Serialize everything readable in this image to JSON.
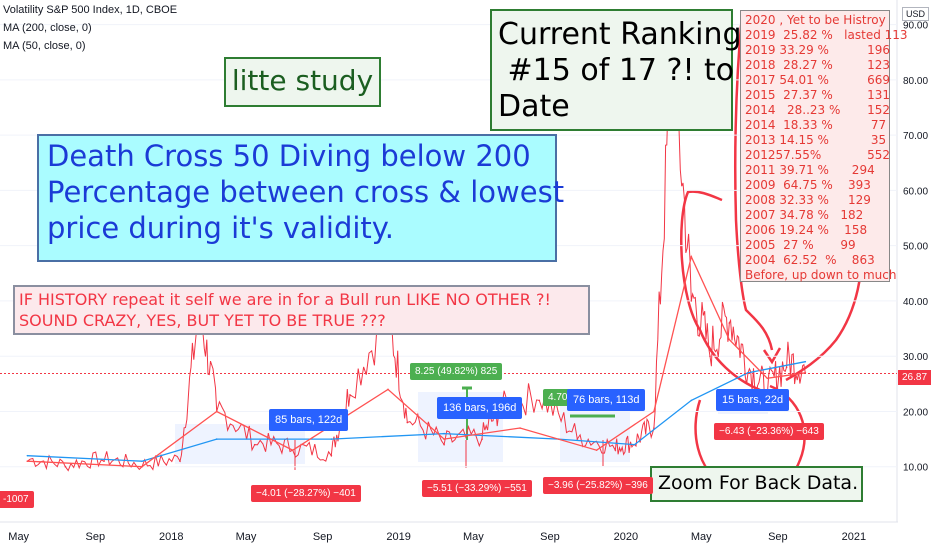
{
  "header": {
    "symbol_line": "Volatility S&P 500 Index, 1D, CBOE",
    "ma200": "MA (200, close, 0)",
    "ma50": "MA (50, close, 0)"
  },
  "currency": "USD",
  "last_price": "26.87",
  "notes": {
    "litte_study": "litte study",
    "current_ranking": "Current Ranking\n #15 of 17 ?! to\nDate",
    "death_cross": "Death Cross 50 Diving below 200\nPercentage between cross & lowest\nprice during it's validity.",
    "history": "IF HISTORY repeat it self we are in for a Bull run LIKE NO OTHER ?!\nSOUND CRAZY, YES, BUT YET TO BE TRUE ???",
    "zoom": "Zoom For Back Data."
  },
  "ranking_list": [
    "2020 , Yet to be Histroy",
    "2019  25.82 %   lasted 113",
    "2019 33.29 %          196",
    "2018  28.27 %         123",
    "2017 54.01 %          669",
    "2015  27.37 %         131",
    "2014   28..23 %       152",
    "2014  18.33 %          77",
    "2013 14.15 %           35",
    "201257.55%            552",
    "2011 39.71 %      294",
    "2009  64.75 %    393",
    "2008 32.33 %     129",
    "2007 34.78 %   182",
    "2006 19.24 %    158",
    "2005  27 %       99",
    "2004  62.52  %    863",
    "Before, up down to much"
  ],
  "measure_labels": {
    "m1": "-1007",
    "m2": "85 bars, 122d",
    "m3": "−4.01 (−28.27%) −401",
    "m4": "8.25 (49.82%) 825",
    "m5": "136 bars, 196d",
    "m6": "−5.51 (−33.29%) −551",
    "m7": "4.70",
    "m8": "76 bars, 113d",
    "m9": "−3.96 (−25.82%) −396",
    "m10": "15 bars, 22d",
    "m11": "−6.43 (−23.36%) −643"
  },
  "colors": {
    "price": "#f23645",
    "ma200": "#2196f3",
    "ma50": "#ff5252",
    "measure_blue": "#2962ff",
    "measure_red": "#f23645",
    "measure_green": "#4caf50"
  },
  "chart_data": {
    "type": "line",
    "title": "Volatility S&P 500 Index, 1D, CBOE",
    "ylim": [
      0,
      93
    ],
    "y_ticks": [
      "10.00",
      "20.00",
      "30.00",
      "40.00",
      "50.00",
      "60.00",
      "70.00",
      "80.00",
      "90.00"
    ],
    "x_ticks": [
      "May",
      "Sep",
      "2018",
      "May",
      "Sep",
      "2019",
      "May",
      "Sep",
      "2020",
      "May",
      "Sep",
      "2021"
    ],
    "series": [
      {
        "name": "Volatility S&P 500 Index",
        "x": [
          "2017-05",
          "2017-07",
          "2017-09",
          "2017-11",
          "2018-01",
          "2018-02",
          "2018-03",
          "2018-05",
          "2018-07",
          "2018-09",
          "2018-10",
          "2018-12",
          "2019-01",
          "2019-03",
          "2019-05",
          "2019-06",
          "2019-08",
          "2019-10",
          "2019-12",
          "2020-01",
          "2020-02",
          "2020-03",
          "2020-04",
          "2020-05",
          "2020-06",
          "2020-07",
          "2020-08",
          "2020-09",
          "2020-10"
        ],
        "values": [
          11,
          10,
          11,
          10,
          11,
          37,
          20,
          14,
          13,
          12,
          23,
          36,
          18,
          14,
          15,
          20,
          22,
          15,
          13,
          14,
          17,
          82,
          40,
          30,
          36,
          27,
          23,
          28,
          27
        ]
      },
      {
        "name": "MA (200, close, 0)",
        "x": [
          "2017-05",
          "2017-11",
          "2018-03",
          "2018-09",
          "2019-03",
          "2019-09",
          "2020-01",
          "2020-04",
          "2020-07",
          "2020-10"
        ],
        "values": [
          12,
          11,
          15,
          15,
          16,
          15,
          14,
          22,
          27,
          29
        ]
      },
      {
        "name": "MA (50, close, 0)",
        "x": [
          "2017-05",
          "2017-11",
          "2018-03",
          "2018-07",
          "2018-12",
          "2019-03",
          "2019-07",
          "2019-11",
          "2020-02",
          "2020-04",
          "2020-06",
          "2020-08",
          "2020-10"
        ],
        "values": [
          11,
          10,
          20,
          13,
          24,
          15,
          17,
          13,
          20,
          48,
          33,
          26,
          27
        ]
      }
    ]
  }
}
